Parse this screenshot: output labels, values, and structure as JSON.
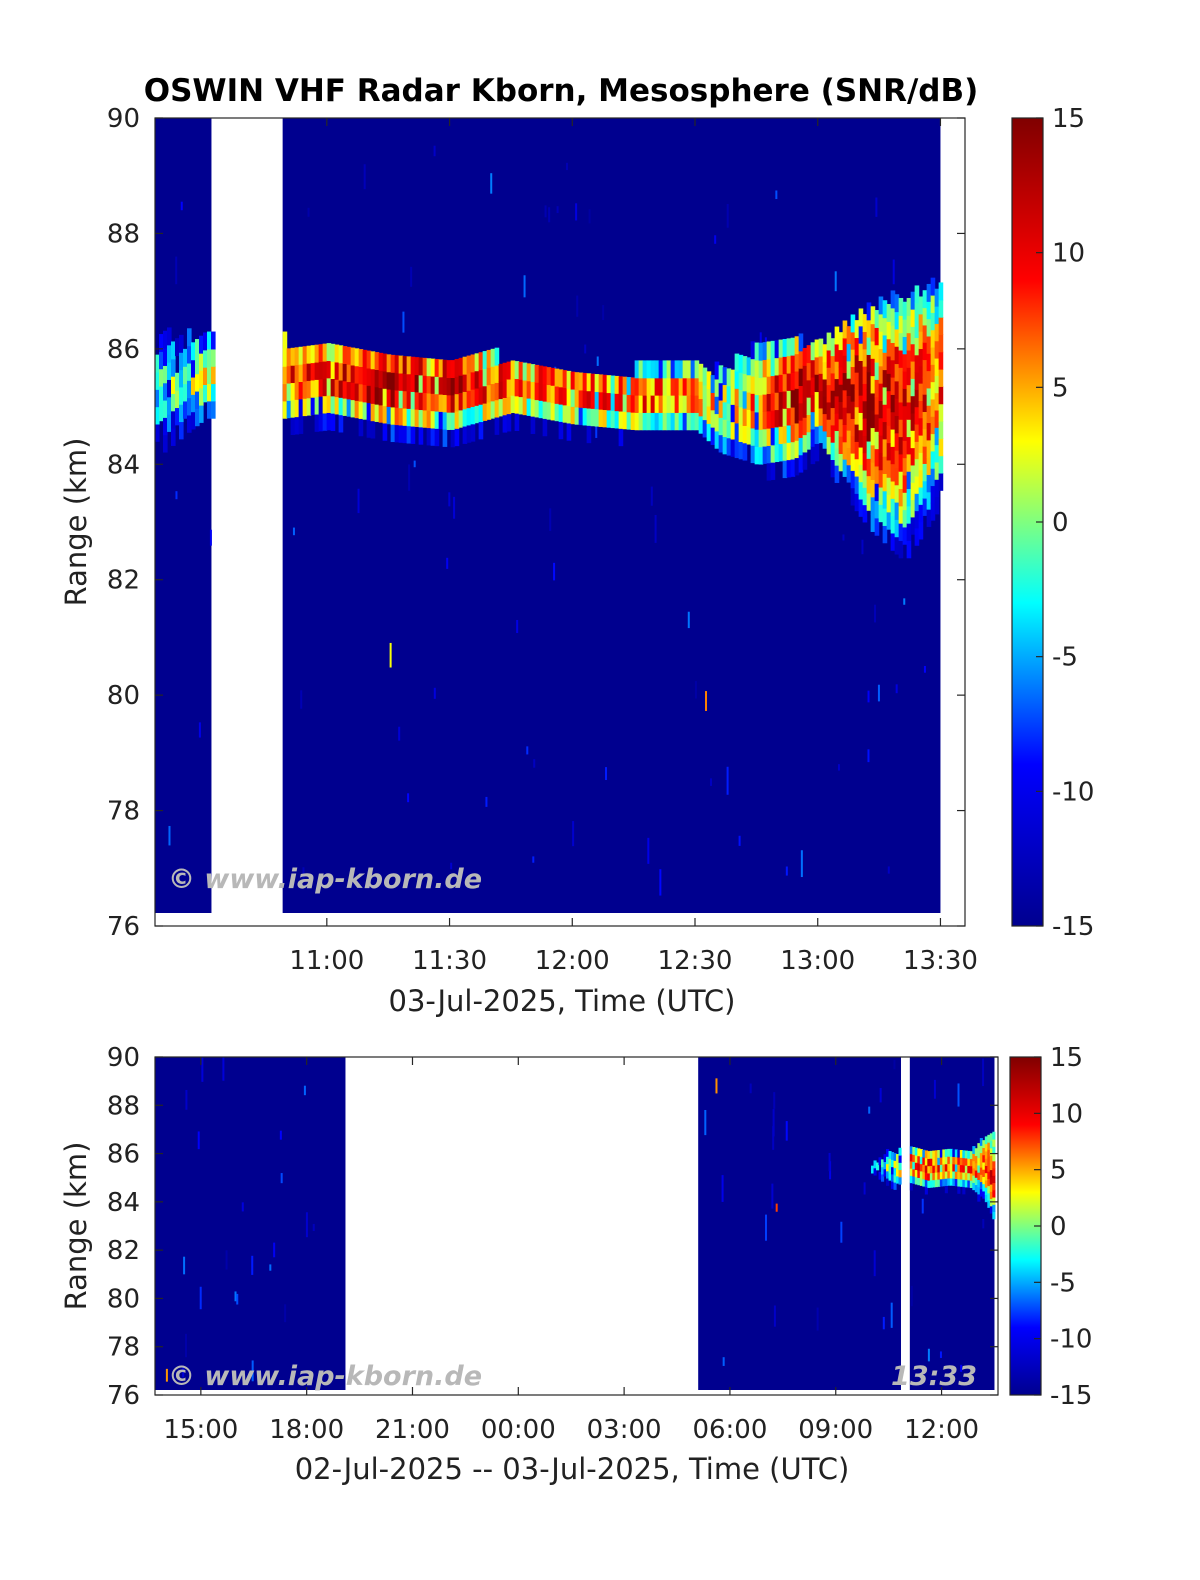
{
  "title": "OSWIN VHF Radar Kborn, Mesosphere (SNR/dB)",
  "watermark": "© www.iap-kborn.de",
  "colormap": [
    "#00008f",
    "#0000ff",
    "#00ffff",
    "#ffff00",
    "#ff0000",
    "#800000"
  ],
  "chart_data": [
    {
      "type": "heatmap",
      "name": "top-panel",
      "xlabel": "03-Jul-2025, Time (UTC)",
      "ylabel": "Range (km)",
      "x_unit": "hours UTC on 03-Jul-2025",
      "xlim": [
        10.3,
        13.6
      ],
      "ylim": [
        76,
        90
      ],
      "xticks": [
        11.0,
        11.5,
        12.0,
        12.5,
        13.0,
        13.5
      ],
      "xtick_labels": [
        "11:00",
        "11:30",
        "12:00",
        "12:30",
        "13:00",
        "13:30"
      ],
      "yticks": [
        76,
        78,
        80,
        82,
        84,
        86,
        88,
        90
      ],
      "colorbar": {
        "label": "SNR/dB",
        "limits": [
          -15,
          15
        ],
        "ticks": [
          -15,
          -10,
          -5,
          0,
          5,
          10,
          15
        ]
      },
      "data_segments": [
        [
          10.3,
          10.53
        ],
        [
          10.82,
          13.5
        ]
      ],
      "layer": {
        "times": [
          10.3,
          10.5,
          10.82,
          11.0,
          11.25,
          11.5,
          11.75,
          12.0,
          12.25,
          12.5,
          12.6,
          12.75,
          12.9,
          13.0,
          13.2,
          13.35,
          13.5
        ],
        "top_km": [
          86.1,
          86.1,
          86.0,
          85.9,
          85.8,
          85.8,
          85.7,
          85.5,
          85.5,
          85.5,
          85.5,
          85.9,
          86.0,
          86.0,
          86.6,
          86.8,
          87.0
        ],
        "bottom_km": [
          83.5,
          84.2,
          84.2,
          84.3,
          84.1,
          84.0,
          84.3,
          84.1,
          84.0,
          84.0,
          83.6,
          83.4,
          83.5,
          83.8,
          82.6,
          82.0,
          83.0
        ],
        "peak_snr_db": [
          -3,
          2,
          8,
          10,
          13,
          11,
          8,
          8,
          8,
          6,
          2,
          6,
          13,
          11,
          13,
          10,
          8
        ]
      }
    },
    {
      "type": "heatmap",
      "name": "bottom-panel",
      "xlabel": "02-Jul-2025 -- 03-Jul-2025, Time (UTC)",
      "ylabel": "Range (km)",
      "x_unit": "hours UTC since 00:00 on 02-Jul-2025",
      "xlim": [
        13.7,
        37.6
      ],
      "ylim": [
        76,
        90
      ],
      "xticks": [
        15,
        18,
        21,
        24,
        27,
        30,
        33,
        36
      ],
      "xtick_labels": [
        "15:00",
        "18:00",
        "21:00",
        "00:00",
        "03:00",
        "06:00",
        "09:00",
        "12:00"
      ],
      "yticks": [
        76,
        78,
        80,
        82,
        84,
        86,
        88,
        90
      ],
      "colorbar": {
        "label": "SNR/dB",
        "limits": [
          -15,
          15
        ],
        "ticks": [
          -15,
          -10,
          -5,
          0,
          5,
          10,
          15
        ]
      },
      "data_segments": [
        [
          13.7,
          19.1
        ],
        [
          29.1,
          34.85
        ],
        [
          35.1,
          37.5
        ]
      ],
      "layer": {
        "times": [
          34.0,
          34.5,
          34.85,
          35.1,
          35.6,
          36.2,
          36.8,
          37.2,
          37.5
        ],
        "top_km": [
          85.4,
          86.0,
          86.0,
          86.0,
          86.0,
          86.0,
          86.0,
          86.5,
          87.0
        ],
        "bottom_km": [
          84.6,
          84.0,
          83.8,
          84.2,
          84.0,
          84.1,
          84.0,
          83.5,
          82.5
        ],
        "peak_snr_db": [
          -5,
          0,
          3,
          8,
          9,
          6,
          6,
          9,
          10
        ]
      },
      "time_stamp": "13:33"
    }
  ]
}
